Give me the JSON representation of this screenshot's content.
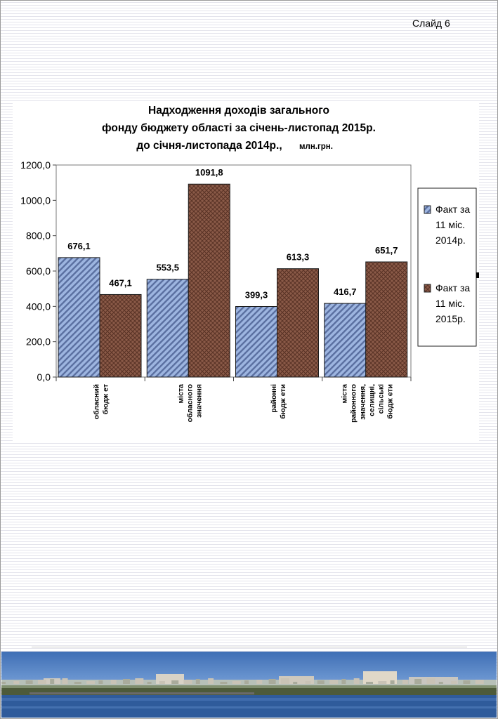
{
  "slide": {
    "label": "Слайд 6"
  },
  "chart_data": {
    "type": "bar",
    "title_lines": [
      "Надходження доходів загального",
      "фонду бюджету області за січень-листопад 2015р.",
      "до січня-листопада 2014р.,"
    ],
    "title_unit": "млн.грн.",
    "categories": [
      [
        "обласний",
        "бюдж ет"
      ],
      [
        "міста",
        "обласного",
        "значення"
      ],
      [
        "районні",
        "бюдж ети"
      ],
      [
        "міста",
        "районного",
        "значення,",
        "селищні,",
        "сільські",
        "бюдж ети"
      ]
    ],
    "series": [
      {
        "name": [
          "Факт за",
          "11 міс.",
          "2014р."
        ],
        "values": [
          676.1,
          553.5,
          399.3,
          416.7
        ],
        "labels": [
          "676,1",
          "553,5",
          "399,3",
          "416,7"
        ],
        "color": "#8fa8d8",
        "pattern": "diagonal"
      },
      {
        "name": [
          "Факт за",
          "11 міс.",
          "2015р."
        ],
        "values": [
          467.1,
          1091.8,
          613.3,
          651.7
        ],
        "labels": [
          "467,1",
          "1091,8",
          "613,3",
          "651,7"
        ],
        "color": "#7a5040",
        "pattern": "crosshatch"
      }
    ],
    "ylim": [
      0,
      1200
    ],
    "yticks": [
      0,
      200,
      400,
      600,
      800,
      1000,
      1200
    ],
    "ytick_labels": [
      "0,0",
      "200,0",
      "400,0",
      "600,0",
      "800,0",
      "1000,0",
      "1200,0"
    ],
    "grid": false,
    "legend_position": "right"
  }
}
